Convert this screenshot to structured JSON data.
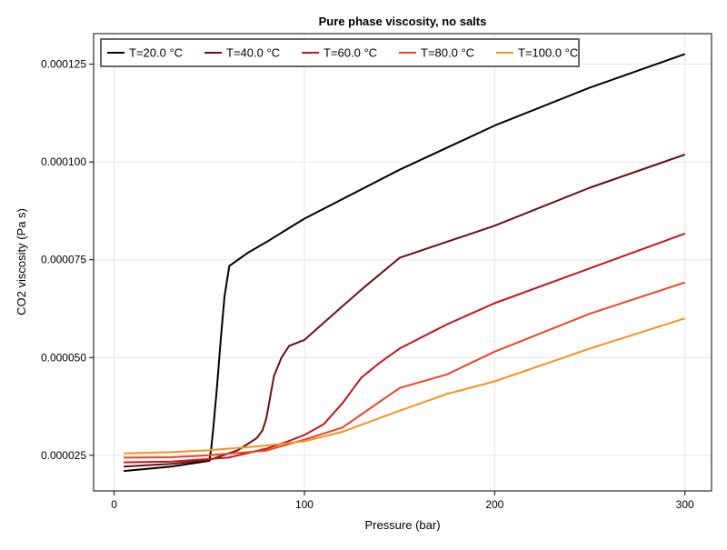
{
  "chart_data": {
    "type": "line",
    "title": "Pure phase viscosity, no salts",
    "xlabel": "Pressure (bar)",
    "ylabel": "CO2 viscosity (Pa s)",
    "xlim": [
      -10.8,
      314
    ],
    "ylim": [
      1.59e-05,
      0.0001328
    ],
    "xticks": [
      0,
      100,
      200,
      300
    ],
    "xtick_labels": [
      "0",
      "100",
      "200",
      "300"
    ],
    "yticks": [
      2.5e-05,
      5e-05,
      7.5e-05,
      0.0001,
      0.000125
    ],
    "ytick_labels": [
      "0.000025",
      "0.000050",
      "0.000075",
      "0.000100",
      "0.000125"
    ],
    "grid": true,
    "legend_placement": "top-left",
    "series": [
      {
        "name": "T=20.0 °C",
        "color": "#000000",
        "x": [
          5,
          30,
          50,
          51,
          52,
          54,
          56,
          58,
          60.5,
          70,
          80,
          90,
          100,
          150,
          200,
          250,
          300
        ],
        "y": [
          2.1e-05,
          2.21e-05,
          2.36e-05,
          2.67e-05,
          3.14e-05,
          4.22e-05,
          5.46e-05,
          6.55e-05,
          7.34e-05,
          7.67e-05,
          7.95e-05,
          8.25e-05,
          8.55e-05,
          9.8e-05,
          0.0001093,
          0.000119,
          0.0001276
        ]
      },
      {
        "name": "T=40.0 °C",
        "color": "#6b0f12",
        "x": [
          5,
          30,
          50,
          65,
          75,
          78,
          80,
          82,
          84,
          88,
          92,
          100,
          120,
          131,
          150,
          200,
          250,
          300
        ],
        "y": [
          2.21e-05,
          2.28e-05,
          2.38e-05,
          2.63e-05,
          2.94e-05,
          3.14e-05,
          3.45e-05,
          3.99e-05,
          4.53e-05,
          5e-05,
          5.3e-05,
          5.45e-05,
          6.31e-05,
          6.78e-05,
          7.55e-05,
          8.37e-05,
          9.34e-05,
          0.0001019
        ]
      },
      {
        "name": "T=60.0 °C",
        "color": "#c0191b",
        "x": [
          5,
          30,
          60,
          80,
          90,
          100,
          110,
          120,
          130,
          140,
          150,
          175,
          200,
          250,
          300
        ],
        "y": [
          2.32e-05,
          2.34e-05,
          2.44e-05,
          2.67e-05,
          2.83e-05,
          3.02e-05,
          3.29e-05,
          3.83e-05,
          4.49e-05,
          4.88e-05,
          5.23e-05,
          5.85e-05,
          6.39e-05,
          7.28e-05,
          8.17e-05
        ]
      },
      {
        "name": "T=80.0 °C",
        "color": "#ee4424",
        "x": [
          5,
          30,
          50,
          80,
          100,
          120,
          150,
          175,
          200,
          250,
          300
        ],
        "y": [
          2.44e-05,
          2.45e-05,
          2.5e-05,
          2.62e-05,
          2.9e-05,
          3.21e-05,
          4.22e-05,
          4.57e-05,
          5.15e-05,
          6.12e-05,
          6.92e-05
        ]
      },
      {
        "name": "T=100.0 °C",
        "color": "#f7931e",
        "x": [
          5,
          30,
          50,
          80,
          100,
          120,
          150,
          175,
          200,
          250,
          300
        ],
        "y": [
          2.55e-05,
          2.58e-05,
          2.63e-05,
          2.75e-05,
          2.86e-05,
          3.1e-05,
          3.64e-05,
          4.07e-05,
          4.39e-05,
          5.23e-05,
          6e-05
        ]
      }
    ]
  }
}
